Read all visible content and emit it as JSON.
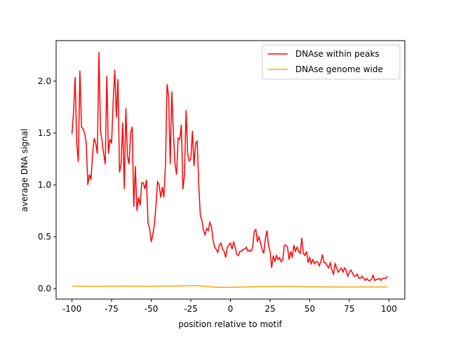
{
  "chart_data": {
    "type": "line",
    "xlabel": "position relative to motif",
    "ylabel": "average DNA signal",
    "x": [
      -100,
      -99,
      -98,
      -97,
      -96,
      -95,
      -94,
      -93,
      -92,
      -91,
      -90,
      -89,
      -88,
      -87,
      -86,
      -85,
      -84,
      -83,
      -82,
      -81,
      -80,
      -79,
      -78,
      -77,
      -76,
      -75,
      -74,
      -73,
      -72,
      -71,
      -70,
      -69,
      -68,
      -67,
      -66,
      -65,
      -64,
      -63,
      -62,
      -61,
      -60,
      -59,
      -58,
      -57,
      -56,
      -55,
      -54,
      -53,
      -52,
      -51,
      -50,
      -49,
      -48,
      -47,
      -46,
      -45,
      -44,
      -43,
      -42,
      -41,
      -40,
      -39,
      -38,
      -37,
      -36,
      -35,
      -34,
      -33,
      -32,
      -31,
      -30,
      -29,
      -28,
      -27,
      -26,
      -25,
      -24,
      -23,
      -22,
      -21,
      -20,
      -19,
      -18,
      -17,
      -16,
      -15,
      -14,
      -13,
      -12,
      -11,
      -10,
      -9,
      -8,
      -7,
      -6,
      -5,
      -4,
      -3,
      -2,
      -1,
      0,
      1,
      2,
      3,
      4,
      5,
      6,
      7,
      8,
      9,
      10,
      11,
      12,
      13,
      14,
      15,
      16,
      17,
      18,
      19,
      20,
      21,
      22,
      23,
      24,
      25,
      26,
      27,
      28,
      29,
      30,
      31,
      32,
      33,
      34,
      35,
      36,
      37,
      38,
      39,
      40,
      41,
      42,
      43,
      44,
      45,
      46,
      47,
      48,
      49,
      50,
      51,
      52,
      53,
      54,
      55,
      56,
      57,
      58,
      59,
      60,
      61,
      62,
      63,
      64,
      65,
      66,
      67,
      68,
      69,
      70,
      71,
      72,
      73,
      74,
      75,
      76,
      77,
      78,
      79,
      80,
      81,
      82,
      83,
      84,
      85,
      86,
      87,
      88,
      89,
      90,
      91,
      92,
      93,
      94,
      95,
      96,
      97,
      98,
      99
    ],
    "series": [
      {
        "name": "DNAse within peaks",
        "color": "#ff0000",
        "values": [
          1.49,
          1.7,
          2.04,
          1.4,
          1.22,
          2.1,
          1.56,
          1.54,
          1.5,
          1.4,
          1.0,
          1.1,
          1.05,
          1.3,
          1.45,
          1.4,
          1.3,
          2.28,
          1.52,
          1.42,
          1.3,
          1.2,
          2.05,
          1.3,
          1.44,
          1.4,
          1.8,
          2.11,
          1.65,
          2.02,
          1.12,
          1.2,
          1.6,
          0.96,
          1.74,
          1.28,
          1.2,
          1.5,
          1.56,
          0.79,
          1.18,
          0.75,
          0.88,
          0.8,
          1.02,
          1.02,
          0.96,
          1.05,
          0.63,
          0.58,
          0.45,
          0.52,
          0.62,
          0.8,
          1.03,
          1.0,
          0.88,
          0.98,
          0.88,
          1.2,
          1.97,
          1.85,
          1.2,
          1.9,
          1.5,
          1.2,
          1.1,
          1.45,
          1.44,
          1.58,
          0.96,
          1.1,
          1.72,
          1.3,
          1.23,
          1.25,
          1.52,
          1.18,
          1.4,
          1.42,
          1.0,
          0.7,
          0.66,
          0.56,
          0.52,
          0.58,
          0.56,
          0.64,
          0.6,
          0.47,
          0.4,
          0.38,
          0.35,
          0.42,
          0.44,
          0.38,
          0.36,
          0.3,
          0.4,
          0.42,
          0.44,
          0.38,
          0.45,
          0.4,
          0.33,
          0.32,
          0.36,
          0.36,
          0.38,
          0.38,
          0.4,
          0.36,
          0.37,
          0.36,
          0.4,
          0.55,
          0.57,
          0.45,
          0.5,
          0.44,
          0.38,
          0.34,
          0.48,
          0.56,
          0.42,
          0.36,
          0.2,
          0.32,
          0.26,
          0.32,
          0.28,
          0.3,
          0.26,
          0.28,
          0.42,
          0.42,
          0.4,
          0.28,
          0.36,
          0.3,
          0.42,
          0.36,
          0.4,
          0.36,
          0.34,
          0.49,
          0.34,
          0.32,
          0.36,
          0.25,
          0.3,
          0.24,
          0.28,
          0.24,
          0.26,
          0.26,
          0.22,
          0.26,
          0.33,
          0.25,
          0.25,
          0.22,
          0.2,
          0.25,
          0.18,
          0.14,
          0.24,
          0.2,
          0.16,
          0.18,
          0.2,
          0.16,
          0.2,
          0.18,
          0.12,
          0.16,
          0.18,
          0.15,
          0.12,
          0.12,
          0.14,
          0.1,
          0.1,
          0.12,
          0.1,
          0.08,
          0.1,
          0.08,
          0.08,
          0.09,
          0.13,
          0.08,
          0.09,
          0.09,
          0.1,
          0.08,
          0.1,
          0.1,
          0.1,
          0.12
        ]
      },
      {
        "name": "DNAse genome wide",
        "color": "#ffa500",
        "values": [
          0.025,
          0.025,
          0.025,
          0.024,
          0.024,
          0.024,
          0.024,
          0.024,
          0.024,
          0.023,
          0.023,
          0.023,
          0.023,
          0.023,
          0.023,
          0.023,
          0.023,
          0.023,
          0.023,
          0.023,
          0.023,
          0.024,
          0.024,
          0.024,
          0.024,
          0.024,
          0.024,
          0.024,
          0.025,
          0.025,
          0.025,
          0.025,
          0.025,
          0.025,
          0.025,
          0.024,
          0.024,
          0.024,
          0.024,
          0.024,
          0.024,
          0.024,
          0.024,
          0.024,
          0.024,
          0.024,
          0.023,
          0.023,
          0.023,
          0.023,
          0.023,
          0.023,
          0.024,
          0.024,
          0.024,
          0.025,
          0.025,
          0.025,
          0.025,
          0.025,
          0.025,
          0.025,
          0.026,
          0.026,
          0.026,
          0.026,
          0.026,
          0.026,
          0.027,
          0.027,
          0.027,
          0.027,
          0.028,
          0.028,
          0.028,
          0.028,
          0.029,
          0.029,
          0.029,
          0.029,
          0.028,
          0.027,
          0.026,
          0.024,
          0.022,
          0.02,
          0.019,
          0.018,
          0.017,
          0.016,
          0.015,
          0.015,
          0.014,
          0.014,
          0.014,
          0.013,
          0.013,
          0.013,
          0.013,
          0.013,
          0.013,
          0.014,
          0.014,
          0.014,
          0.015,
          0.015,
          0.015,
          0.016,
          0.016,
          0.016,
          0.017,
          0.017,
          0.017,
          0.018,
          0.018,
          0.018,
          0.018,
          0.019,
          0.019,
          0.019,
          0.019,
          0.019,
          0.02,
          0.02,
          0.02,
          0.02,
          0.02,
          0.02,
          0.021,
          0.021,
          0.021,
          0.021,
          0.021,
          0.021,
          0.021,
          0.021,
          0.021,
          0.021,
          0.021,
          0.02,
          0.02,
          0.02,
          0.02,
          0.019,
          0.019,
          0.019,
          0.018,
          0.018,
          0.018,
          0.018,
          0.018,
          0.018,
          0.018,
          0.018,
          0.018,
          0.018,
          0.018,
          0.017,
          0.017,
          0.017,
          0.017,
          0.017,
          0.017,
          0.017,
          0.016,
          0.016,
          0.016,
          0.016,
          0.016,
          0.016,
          0.016,
          0.016,
          0.016,
          0.016,
          0.016,
          0.016,
          0.016,
          0.016,
          0.016,
          0.016,
          0.016,
          0.016,
          0.016,
          0.016,
          0.016,
          0.016,
          0.016,
          0.016,
          0.016,
          0.016,
          0.016,
          0.016,
          0.016,
          0.016,
          0.016,
          0.016,
          0.016,
          0.017,
          0.017,
          0.017
        ]
      }
    ],
    "xlim": [
      -110,
      110
    ],
    "xticks": [
      -100,
      -75,
      -50,
      -25,
      0,
      25,
      50,
      75,
      100
    ],
    "ylim": [
      -0.1,
      2.39
    ],
    "yticks": [
      {
        "value": 0,
        "label": "0.0"
      },
      {
        "value": 0.5,
        "label": "0.5"
      },
      {
        "value": 1,
        "label": "1.0"
      },
      {
        "value": 1.5,
        "label": "1.5"
      },
      {
        "value": 2,
        "label": "2.0"
      }
    ],
    "legend": "upper right"
  }
}
